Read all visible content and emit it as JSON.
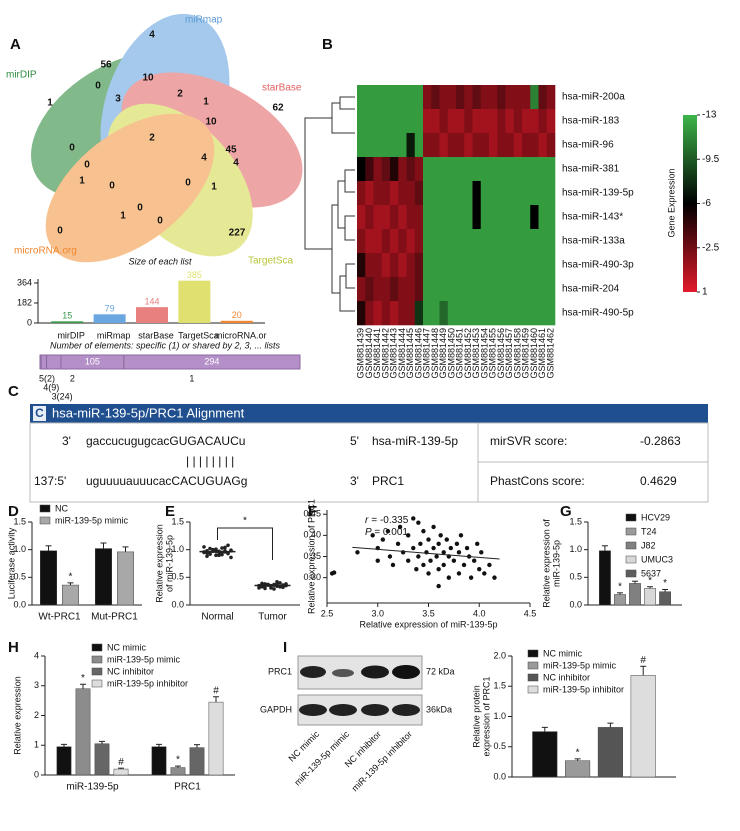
{
  "panel_labels": [
    "A",
    "B",
    "C",
    "D",
    "E",
    "F",
    "G",
    "H",
    "I"
  ],
  "venn": {
    "sets": [
      {
        "label": "mirDIP",
        "color": "#2e8b3e"
      },
      {
        "label": "miRmap",
        "color": "#5b9bd5"
      },
      {
        "label": "starBase",
        "color": "#e06060"
      },
      {
        "label": "TargetSca",
        "color": "#b9c43a"
      },
      {
        "label": "microRNA.org",
        "color": "#f0862e"
      }
    ],
    "counts": [
      4,
      56,
      10,
      62,
      1,
      0,
      3,
      2,
      1,
      10,
      2,
      4,
      45,
      0,
      0,
      1,
      0,
      4,
      0,
      1,
      0,
      1,
      0,
      227,
      0
    ],
    "caption": "Size of each list"
  },
  "list_sizes": {
    "categories": [
      "mirDIP",
      "miRmap",
      "starBase",
      "TargetSca",
      "microRNA.or"
    ],
    "values": [
      15,
      79,
      144,
      385,
      20
    ],
    "colors": [
      "#3a9a4a",
      "#6aa6e0",
      "#e88080",
      "#e0e070",
      "#f0862e"
    ],
    "ylim": [
      0,
      400
    ],
    "yticks": [
      0,
      182,
      364
    ]
  },
  "overlaps": {
    "caption": "Number of elements: specific (1) or shared by 2, 3, ... lists",
    "segments": [
      {
        "label": "5(2)",
        "value": 2
      },
      {
        "label": "4(9)",
        "value": 9
      },
      {
        "label": "3(24)",
        "value": 24
      },
      {
        "label": "2",
        "value": 105
      },
      {
        "label": "1",
        "value": 294
      }
    ],
    "color": "#b48fc8"
  },
  "heatmap": {
    "rows": [
      "hsa-miR-200a",
      "hsa-miR-183",
      "hsa-miR-96",
      "hsa-miR-381",
      "hsa-miR-139-5p",
      "hsa-miR-143*",
      "hsa-miR-133a",
      "hsa-miR-490-3p",
      "hsa-miR-204",
      "hsa-miR-490-5p"
    ],
    "columns": [
      "GSM881439",
      "GSM881440",
      "GSM881441",
      "GSM881442",
      "GSM881443",
      "GSM881444",
      "GSM881445",
      "GSM881446",
      "GSM881447",
      "GSM881448",
      "GSM881449",
      "GSM881450",
      "GSM881451",
      "GSM881452",
      "GSM881453",
      "GSM881454",
      "GSM881455",
      "GSM881456",
      "GSM881457",
      "GSM881458",
      "GSM881459",
      "GSM881460",
      "GSM881461",
      "GSM881462"
    ],
    "values": [
      [
        -12,
        -12,
        -12,
        -12,
        -12,
        -12,
        -12,
        -12,
        -2,
        -3,
        -2,
        -2,
        -3,
        -2,
        -3,
        -2,
        -2,
        -3,
        -2,
        -2,
        -2,
        -11,
        -3,
        -2
      ],
      [
        -12,
        -12,
        -12,
        -12,
        -12,
        -12,
        -12,
        -12,
        -1,
        -1,
        -2,
        -1,
        -1,
        -2,
        -1,
        -1,
        -1,
        -2,
        -1,
        -2,
        -1,
        -1,
        -2,
        -1
      ],
      [
        -12,
        -12,
        -12,
        -12,
        -12,
        -12,
        -7,
        -12,
        -2,
        -2,
        -1,
        -2,
        -2,
        -1,
        -2,
        -2,
        -1,
        -2,
        -2,
        -1,
        -2,
        -2,
        -1,
        -2
      ],
      [
        -6,
        -4,
        -2,
        -3,
        -5,
        -2,
        -3,
        -2,
        -12,
        -12,
        -12,
        -12,
        -12,
        -12,
        -12,
        -12,
        -12,
        -12,
        -12,
        -12,
        -12,
        -12,
        -12,
        -12
      ],
      [
        -2,
        -1,
        -2,
        -2,
        -1,
        -2,
        -2,
        -3,
        -12,
        -12,
        -12,
        -12,
        -12,
        -12,
        -6,
        -12,
        -12,
        -12,
        -12,
        -12,
        -12,
        -12,
        -12,
        -12
      ],
      [
        -1,
        -2,
        -1,
        -1,
        -2,
        -1,
        -2,
        -2,
        -12,
        -12,
        -12,
        -12,
        -12,
        -12,
        -6,
        -12,
        -12,
        -12,
        -12,
        -12,
        -12,
        -6,
        -12,
        -12
      ],
      [
        -2,
        -1,
        -1,
        -2,
        -1,
        -2,
        -1,
        -2,
        -12,
        -12,
        -12,
        -12,
        -12,
        -12,
        -12,
        -12,
        -12,
        -12,
        -12,
        -12,
        -12,
        -12,
        -12,
        -12
      ],
      [
        -5,
        -2,
        -2,
        -1,
        -2,
        -1,
        -2,
        -3,
        -12,
        -12,
        -12,
        -12,
        -12,
        -12,
        -12,
        -12,
        -12,
        -12,
        -12,
        -12,
        -12,
        -12,
        -12,
        -12
      ],
      [
        -2,
        -3,
        -2,
        -2,
        -3,
        -2,
        -2,
        -3,
        -12,
        -12,
        -12,
        -12,
        -12,
        -12,
        -12,
        -12,
        -12,
        -12,
        -12,
        -12,
        -12,
        -12,
        -12,
        -12
      ],
      [
        -5,
        -2,
        -1,
        -2,
        -1,
        -2,
        -2,
        -8,
        -12,
        -12,
        -10,
        -12,
        -12,
        -12,
        -12,
        -12,
        -12,
        -12,
        -12,
        -12,
        -12,
        -12,
        -12,
        -12
      ]
    ],
    "colors": [
      "#3db54a",
      "#000000",
      "#e31a2a"
    ],
    "clim": [
      -13,
      1
    ],
    "cticks": [
      -13,
      -9.5,
      -6,
      -2.5,
      1
    ],
    "colorbar_label": "Gene Expression"
  },
  "alignment": {
    "title": "hsa-miR-139-5p/PRC1 Alignment",
    "mirna": {
      "end3": "3'",
      "seq": "gaccucugugcacGUGACAUCu",
      "end5": "5'",
      "name": "hsa-miR-139-5p"
    },
    "pairing": "| | | | | | | |",
    "target": {
      "end5": "137:5'",
      "seq": "uguuuuauuucacCACUGUAGg",
      "end3": "3'",
      "name": "PRC1"
    },
    "scores": [
      {
        "label": "mirSVR score:",
        "value": -0.2863
      },
      {
        "label": "PhastCons score:",
        "value": 0.4629
      }
    ]
  },
  "luciferase": {
    "type": "bar",
    "ylabel": "Luciferase activity",
    "categories": [
      "Wt-PRC1",
      "Mut-PRC1"
    ],
    "series": [
      {
        "name": "NC",
        "color": "#111111",
        "values": [
          0.98,
          1.02
        ],
        "errors": [
          0.09,
          0.1
        ],
        "labels": [
          null,
          null
        ]
      },
      {
        "name": "miR-139-5p mimic",
        "color": "#a8a8a8",
        "values": [
          0.36,
          0.96
        ],
        "errors": [
          0.04,
          0.09
        ],
        "labels": [
          "*",
          null
        ]
      }
    ],
    "ylim": [
      0,
      1.5
    ],
    "yticks": [
      {
        "value": 0,
        "label": "0.0"
      },
      {
        "value": 0.5,
        "label": "0.5"
      },
      {
        "value": 1,
        "label": "1.0"
      },
      {
        "value": 1.5,
        "label": "1.5"
      }
    ]
  },
  "expression_tissue": {
    "type": "dot",
    "ylabel": [
      "Relative expression",
      "of miR-139-5p"
    ],
    "categories": [
      "Normal",
      "Tumor"
    ],
    "series": [
      {
        "values": [
          0.95,
          0.98,
          0.92,
          1.0,
          0.97,
          0.9,
          1.03,
          0.96,
          0.94,
          0.99,
          1.05,
          0.88,
          0.93,
          0.97,
          1.01,
          0.95,
          0.91,
          0.98,
          1.08,
          0.86,
          0.96,
          0.94,
          1.02,
          0.99,
          0.9,
          0.97,
          0.95,
          1.04,
          0.93,
          0.98
        ]
      },
      {
        "values": [
          0.35,
          0.33,
          0.38,
          0.36,
          0.31,
          0.37,
          0.34,
          0.4,
          0.32,
          0.36,
          0.35,
          0.39,
          0.3,
          0.37,
          0.34,
          0.36,
          0.42,
          0.33,
          0.35,
          0.38,
          0.31,
          0.36,
          0.34,
          0.37,
          0.35,
          0.29,
          0.38,
          0.33,
          0.36,
          0.35
        ]
      }
    ],
    "significance": "*",
    "ylim": [
      0,
      1.5
    ],
    "yticks": [
      {
        "value": 0,
        "label": "0.0"
      },
      {
        "value": 0.5,
        "label": "0.5"
      },
      {
        "value": 1,
        "label": "1.0"
      },
      {
        "value": 1.5,
        "label": "1.5"
      }
    ]
  },
  "correlation": {
    "type": "scatter",
    "xlabel": "Relative expression of miR-139-5p",
    "ylabel": "Relative expression of PRC1",
    "stats": [
      {
        "label": "r =",
        "value": -0.335
      },
      {
        "label": "P =",
        "value": 0.001
      }
    ],
    "x": [
      2.55,
      2.57,
      2.8,
      2.95,
      3.0,
      3.05,
      3.1,
      3.12,
      3.15,
      3.2,
      3.22,
      3.25,
      3.3,
      3.3,
      3.35,
      3.38,
      3.4,
      3.4,
      3.42,
      3.45,
      3.45,
      3.48,
      3.5,
      3.5,
      3.52,
      3.55,
      3.55,
      3.58,
      3.6,
      3.6,
      3.62,
      3.65,
      3.65,
      3.68,
      3.7,
      3.7,
      3.72,
      3.75,
      3.78,
      3.8,
      3.8,
      3.82,
      3.85,
      3.88,
      3.9,
      3.92,
      3.95,
      3.98,
      4.0,
      4.02,
      4.05,
      4.1,
      4.15,
      3.35,
      3.6,
      3.0
    ],
    "y": [
      0.31,
      0.312,
      0.36,
      0.4,
      0.37,
      0.39,
      0.41,
      0.35,
      0.33,
      0.38,
      0.42,
      0.36,
      0.34,
      0.4,
      0.37,
      0.32,
      0.43,
      0.35,
      0.38,
      0.33,
      0.41,
      0.36,
      0.39,
      0.31,
      0.34,
      0.37,
      0.42,
      0.35,
      0.38,
      0.32,
      0.4,
      0.36,
      0.33,
      0.39,
      0.35,
      0.3,
      0.37,
      0.34,
      0.38,
      0.36,
      0.31,
      0.4,
      0.33,
      0.37,
      0.35,
      0.3,
      0.34,
      0.38,
      0.32,
      0.36,
      0.31,
      0.33,
      0.3,
      0.44,
      0.28,
      0.34
    ],
    "xlim": [
      2.5,
      4.5
    ],
    "xticks": [
      2.5,
      {
        "value": 3,
        "label": "3.0"
      },
      3.5,
      {
        "value": 4,
        "label": "4.0"
      },
      4.5
    ],
    "ylim": [
      0.24,
      0.46
    ],
    "yticks": [
      {
        "value": 0.3,
        "label": "0.30"
      },
      0.35,
      {
        "value": 0.4,
        "label": "0.40"
      },
      0.45
    ]
  },
  "cell_lines": {
    "type": "bar",
    "ylabel": [
      "Relative expression of",
      "miR-139-5p"
    ],
    "series": [
      {
        "name": "HCV29",
        "color": "#111111",
        "values": [
          0.98
        ],
        "errors": [
          0.09
        ],
        "labels": [
          null
        ]
      },
      {
        "name": "T24",
        "color": "#9a9a9a",
        "values": [
          0.19
        ],
        "errors": [
          0.03
        ],
        "labels": [
          "*"
        ]
      },
      {
        "name": "J82",
        "color": "#808080",
        "values": [
          0.39
        ],
        "errors": [
          0.04
        ],
        "labels": [
          "*"
        ]
      },
      {
        "name": "UMUC3",
        "color": "#d8d8d8",
        "values": [
          0.3
        ],
        "errors": [
          0.03
        ],
        "labels": [
          "*"
        ]
      },
      {
        "name": "5637",
        "color": "#5e5e5e",
        "values": [
          0.24
        ],
        "errors": [
          0.04
        ],
        "labels": [
          "*"
        ]
      }
    ],
    "ylim": [
      0,
      1.5
    ],
    "yticks": [
      {
        "value": 0,
        "label": "0.0"
      },
      {
        "value": 0.5,
        "label": "0.5"
      },
      {
        "value": 1,
        "label": "1.0"
      },
      {
        "value": 1.5,
        "label": "1.5"
      }
    ]
  },
  "transfection_rna": {
    "type": "bar",
    "ylabel": "Relative expression",
    "categories": [
      "miR-139-5p",
      "PRC1"
    ],
    "series": [
      {
        "name": "NC mimic",
        "color": "#111111",
        "values": [
          0.95,
          0.95
        ],
        "errors": [
          0.08,
          0.08
        ],
        "labels": [
          null,
          null
        ]
      },
      {
        "name": "miR-139-5p mimic",
        "color": "#8c8c8c",
        "values": [
          2.9,
          0.25
        ],
        "errors": [
          0.15,
          0.05
        ],
        "labels": [
          "*",
          "*"
        ]
      },
      {
        "name": "NC inhibitor",
        "color": "#666666",
        "values": [
          1.05,
          0.92
        ],
        "errors": [
          0.08,
          0.1
        ],
        "labels": [
          null,
          null
        ]
      },
      {
        "name": "miR-139-5p inhibitor",
        "color": "#dddddd",
        "values": [
          0.2,
          2.45
        ],
        "errors": [
          0.03,
          0.18
        ],
        "labels": [
          "#",
          "#"
        ]
      }
    ],
    "ylim": [
      0,
      4
    ],
    "yticks": [
      0,
      1,
      2,
      3,
      4
    ]
  },
  "western_blot": {
    "bands": [
      "PRC1",
      "GAPDH"
    ],
    "sizes": [
      "72 kDa",
      "36kDa"
    ],
    "lanes": [
      "NC mimic",
      "miR-139-5p mimic",
      "NC inhibitor",
      "miR-139-5p inhibitor"
    ]
  },
  "protein_expression": {
    "type": "bar",
    "ylabel": [
      "Relative protein",
      "expression of PRC1"
    ],
    "series": [
      {
        "name": "NC mimic",
        "color": "#111111",
        "values": [
          0.75
        ],
        "errors": [
          0.07
        ],
        "labels": [
          null
        ]
      },
      {
        "name": "miR-139-5p mimic",
        "color": "#9a9a9a",
        "values": [
          0.27
        ],
        "errors": [
          0.03
        ],
        "labels": [
          "*"
        ]
      },
      {
        "name": "NC inhibitor",
        "color": "#555555",
        "values": [
          0.82
        ],
        "errors": [
          0.07
        ],
        "labels": [
          null
        ]
      },
      {
        "name": "miR-139-5p inhibitor",
        "color": "#dddddd",
        "values": [
          1.68
        ],
        "errors": [
          0.15
        ],
        "labels": [
          "#"
        ]
      }
    ],
    "ylim": [
      0,
      2
    ],
    "yticks": [
      {
        "value": 0,
        "label": "0.0"
      },
      {
        "value": 0.5,
        "label": "0.5"
      },
      {
        "value": 1,
        "label": "1.0"
      },
      {
        "value": 1.5,
        "label": "1.5"
      },
      {
        "value": 2,
        "label": "2.0"
      }
    ]
  }
}
